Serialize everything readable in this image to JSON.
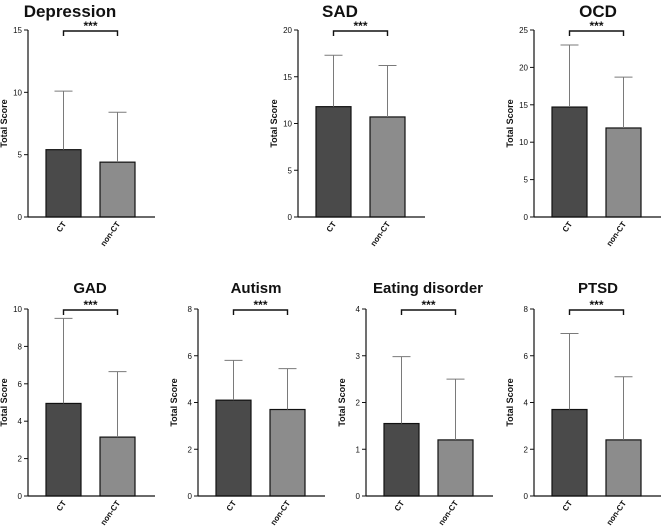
{
  "chart_data": [
    {
      "type": "bar",
      "title": "Depression",
      "ylabel": "Total Score",
      "categories": [
        "CT",
        "non-CT"
      ],
      "values": [
        5.4,
        4.4
      ],
      "errors": [
        4.7,
        4.0
      ],
      "ylim": [
        0,
        15
      ],
      "yticks": [
        0,
        5,
        10,
        15
      ],
      "significance": "***",
      "colors": [
        "#4a4a4a",
        "#8c8c8c"
      ]
    },
    {
      "type": "bar",
      "title": "SAD",
      "ylabel": "Total Score",
      "categories": [
        "CT",
        "non-CT"
      ],
      "values": [
        11.8,
        10.7
      ],
      "errors": [
        5.5,
        5.5
      ],
      "ylim": [
        0,
        20
      ],
      "yticks": [
        0,
        5,
        10,
        15,
        20
      ],
      "significance": "***",
      "colors": [
        "#4a4a4a",
        "#8c8c8c"
      ]
    },
    {
      "type": "bar",
      "title": "OCD",
      "ylabel": "Total Score",
      "categories": [
        "CT",
        "non-CT"
      ],
      "values": [
        14.7,
        11.9
      ],
      "errors": [
        8.3,
        6.8
      ],
      "ylim": [
        0,
        25
      ],
      "yticks": [
        0,
        5,
        10,
        15,
        20,
        25
      ],
      "significance": "***",
      "colors": [
        "#4a4a4a",
        "#8c8c8c"
      ]
    },
    {
      "type": "bar",
      "title": "GAD",
      "ylabel": "Total Score",
      "categories": [
        "CT",
        "non-CT"
      ],
      "values": [
        4.95,
        3.15
      ],
      "errors": [
        4.55,
        3.5
      ],
      "ylim": [
        0,
        10
      ],
      "yticks": [
        0,
        2,
        4,
        6,
        8,
        10
      ],
      "significance": "***",
      "colors": [
        "#4a4a4a",
        "#8c8c8c"
      ]
    },
    {
      "type": "bar",
      "title": "Autism",
      "ylabel": "Total Score",
      "categories": [
        "CT",
        "non-CT"
      ],
      "values": [
        4.1,
        3.7
      ],
      "errors": [
        1.7,
        1.75
      ],
      "ylim": [
        0,
        8
      ],
      "yticks": [
        0,
        2,
        4,
        6,
        8
      ],
      "significance": "***",
      "colors": [
        "#4a4a4a",
        "#8c8c8c"
      ]
    },
    {
      "type": "bar",
      "title": "Eating disorder",
      "ylabel": "Total Score",
      "categories": [
        "CT",
        "non-CT"
      ],
      "values": [
        1.55,
        1.2
      ],
      "errors": [
        1.43,
        1.3
      ],
      "ylim": [
        0,
        4
      ],
      "yticks": [
        0,
        1,
        2,
        3,
        4
      ],
      "significance": "***",
      "colors": [
        "#4a4a4a",
        "#8c8c8c"
      ]
    },
    {
      "type": "bar",
      "title": "PTSD",
      "ylabel": "Total Score",
      "categories": [
        "CT",
        "non-CT"
      ],
      "values": [
        3.7,
        2.4
      ],
      "errors": [
        3.25,
        2.7
      ],
      "ylim": [
        0,
        8
      ],
      "yticks": [
        0,
        2,
        4,
        6,
        8
      ],
      "significance": "***",
      "colors": [
        "#4a4a4a",
        "#8c8c8c"
      ]
    }
  ]
}
